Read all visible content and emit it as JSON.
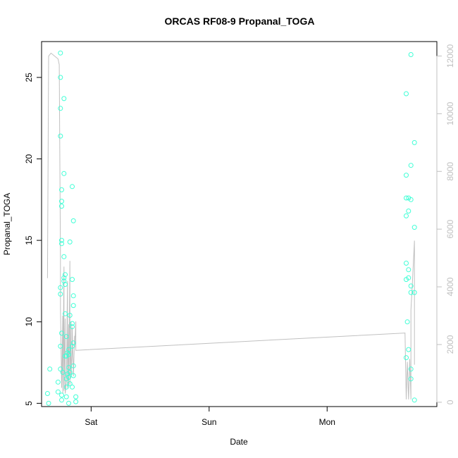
{
  "chart_data": {
    "type": "scatter",
    "title": "ORCAS RF08-9 Propanal_TOGA",
    "xlabel": "Date",
    "ylabel": "Propanal_TOGA",
    "x_ticks": [
      "Sat",
      "Sun",
      "Mon"
    ],
    "x_tick_days": [
      0,
      1,
      2
    ],
    "xlim_days": [
      -0.42,
      2.93
    ],
    "ylim": [
      4.8,
      27.2
    ],
    "y_ticks": [
      5,
      10,
      15,
      20,
      25
    ],
    "y2lim": [
      -150,
      12500
    ],
    "y2_ticks": [
      0,
      2000,
      4000,
      6000,
      8000,
      10000,
      12000
    ],
    "grid": false,
    "colors": {
      "points": "#40ffd6",
      "altitude_line": "#c0c0c0",
      "axis": "#000000",
      "right_axis": "#c0c0c0"
    },
    "series": [
      {
        "type": "scatter",
        "points": [
          [
            -0.37,
            5.6
          ],
          [
            -0.36,
            5.0
          ],
          [
            -0.35,
            7.1
          ],
          [
            -0.28,
            6.3
          ],
          [
            -0.28,
            5.7
          ],
          [
            -0.26,
            26.5
          ],
          [
            -0.26,
            25.0
          ],
          [
            -0.26,
            23.1
          ],
          [
            -0.26,
            21.4
          ],
          [
            -0.25,
            18.1
          ],
          [
            -0.25,
            17.4
          ],
          [
            -0.25,
            17.1
          ],
          [
            -0.25,
            15.0
          ],
          [
            -0.25,
            14.8
          ],
          [
            -0.26,
            12.1
          ],
          [
            -0.26,
            11.7
          ],
          [
            -0.26,
            8.5
          ],
          [
            -0.26,
            7.1
          ],
          [
            -0.25,
            5.5
          ],
          [
            -0.25,
            5.2
          ],
          [
            -0.25,
            9.3
          ],
          [
            -0.24,
            6.9
          ],
          [
            -0.23,
            23.7
          ],
          [
            -0.23,
            19.1
          ],
          [
            -0.23,
            14.0
          ],
          [
            -0.23,
            12.7
          ],
          [
            -0.23,
            12.5
          ],
          [
            -0.22,
            12.9
          ],
          [
            -0.22,
            12.3
          ],
          [
            -0.22,
            10.5
          ],
          [
            -0.22,
            7.9
          ],
          [
            -0.21,
            9.1
          ],
          [
            -0.21,
            7.9
          ],
          [
            -0.21,
            6.5
          ],
          [
            -0.21,
            6.0
          ],
          [
            -0.21,
            5.4
          ],
          [
            -0.2,
            8.1
          ],
          [
            -0.2,
            6.8
          ],
          [
            -0.19,
            8.3
          ],
          [
            -0.19,
            8.0
          ],
          [
            -0.19,
            7.2
          ],
          [
            -0.19,
            6.6
          ],
          [
            -0.19,
            5.0
          ],
          [
            -0.18,
            14.9
          ],
          [
            -0.18,
            10.4
          ],
          [
            -0.18,
            6.9
          ],
          [
            -0.18,
            6.2
          ],
          [
            -0.16,
            18.3
          ],
          [
            -0.16,
            12.6
          ],
          [
            -0.16,
            9.9
          ],
          [
            -0.16,
            9.7
          ],
          [
            -0.16,
            8.5
          ],
          [
            -0.16,
            6.0
          ],
          [
            -0.15,
            16.2
          ],
          [
            -0.15,
            11.6
          ],
          [
            -0.15,
            11.0
          ],
          [
            -0.15,
            8.7
          ],
          [
            -0.15,
            7.3
          ],
          [
            -0.15,
            6.7
          ],
          [
            -0.13,
            5.4
          ],
          [
            -0.13,
            5.1
          ],
          [
            2.67,
            24.0
          ],
          [
            2.67,
            19.0
          ],
          [
            2.67,
            17.6
          ],
          [
            2.67,
            16.5
          ],
          [
            2.67,
            13.6
          ],
          [
            2.67,
            12.6
          ],
          [
            2.67,
            7.8
          ],
          [
            2.68,
            10.0
          ],
          [
            2.69,
            17.6
          ],
          [
            2.69,
            16.8
          ],
          [
            2.69,
            13.2
          ],
          [
            2.69,
            12.7
          ],
          [
            2.69,
            8.3
          ],
          [
            2.71,
            26.4
          ],
          [
            2.71,
            19.6
          ],
          [
            2.71,
            17.5
          ],
          [
            2.71,
            12.2
          ],
          [
            2.71,
            11.8
          ],
          [
            2.71,
            7.1
          ],
          [
            2.71,
            6.5
          ],
          [
            2.74,
            21.0
          ],
          [
            2.74,
            15.8
          ],
          [
            2.74,
            11.8
          ],
          [
            2.74,
            5.2
          ]
        ]
      },
      {
        "type": "line",
        "axis": "right",
        "points": [
          [
            -0.37,
            4300
          ],
          [
            -0.36,
            12000
          ],
          [
            -0.34,
            12100
          ],
          [
            -0.28,
            11900
          ],
          [
            -0.27,
            11700
          ],
          [
            -0.26,
            5000
          ],
          [
            -0.26,
            3300
          ],
          [
            -0.25,
            500
          ],
          [
            -0.24,
            3000
          ],
          [
            -0.24,
            300
          ],
          [
            -0.23,
            4700
          ],
          [
            -0.23,
            400
          ],
          [
            -0.22,
            2900
          ],
          [
            -0.22,
            300
          ],
          [
            -0.21,
            700
          ],
          [
            -0.2,
            4200
          ],
          [
            -0.2,
            500
          ],
          [
            -0.19,
            2700
          ],
          [
            -0.19,
            600
          ],
          [
            -0.18,
            4900
          ],
          [
            -0.18,
            600
          ],
          [
            -0.17,
            2800
          ],
          [
            -0.17,
            900
          ],
          [
            -0.16,
            1800
          ],
          [
            -0.16,
            2600
          ],
          [
            -0.15,
            900
          ],
          [
            -0.14,
            2300
          ],
          [
            -0.14,
            1900
          ],
          [
            -0.13,
            2800
          ],
          [
            -0.13,
            1800
          ],
          [
            2.66,
            2400
          ],
          [
            2.67,
            100
          ],
          [
            2.68,
            1400
          ],
          [
            2.69,
            100
          ],
          [
            2.7,
            1500
          ],
          [
            2.71,
            100
          ],
          [
            2.71,
            3200
          ],
          [
            2.72,
            3900
          ],
          [
            2.74,
            5600
          ],
          [
            2.74,
            1300
          ]
        ]
      }
    ]
  }
}
